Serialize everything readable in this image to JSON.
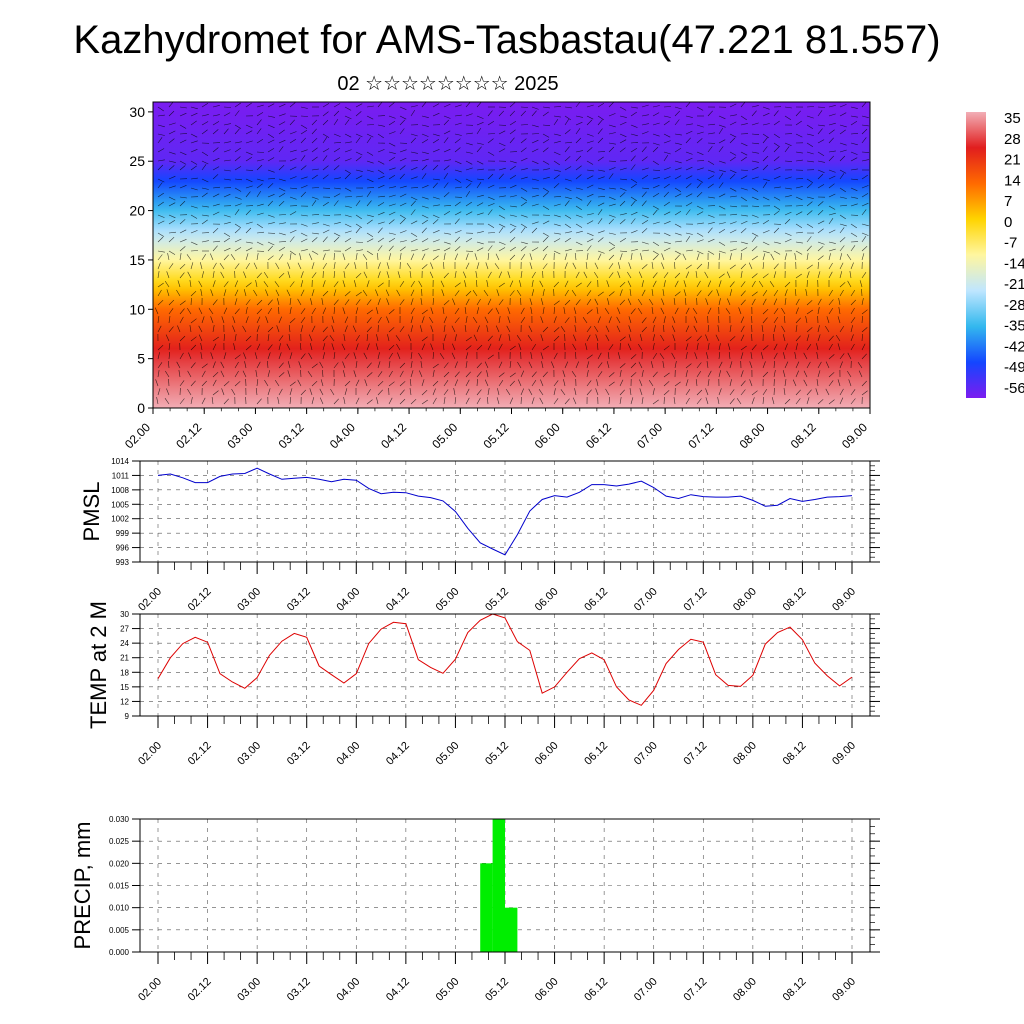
{
  "page": {
    "title": "Kazhydromet for AMS-Tasbastau(47.221 81.557)",
    "subtitle": "02 ☆☆☆☆☆☆☆☆ 2025"
  },
  "time_ticks": [
    "02.00",
    "02.12",
    "03.00",
    "03.12",
    "04.00",
    "04.12",
    "05.00",
    "05.12",
    "06.00",
    "06.12",
    "07.00",
    "07.12",
    "08.00",
    "08.12",
    "09.00"
  ],
  "chart_data": [
    {
      "type": "heatmap",
      "title": "",
      "xlabel": "",
      "ylabel": "",
      "xlim": [
        0,
        7
      ],
      "ylim": [
        0,
        31
      ],
      "y_tick_labels": [
        "0",
        "5",
        "10",
        "15",
        "20",
        "25",
        "30"
      ],
      "colorbar": {
        "labels": [
          "35",
          "28",
          "21",
          "14",
          "7",
          "0",
          "-7",
          "-14",
          "-21",
          "-28",
          "-35",
          "-42",
          "-49",
          "-56"
        ],
        "colors": [
          "#f2aeb6",
          "#e11e1e",
          "#ff6a00",
          "#ffd400",
          "#fff6a0",
          "#bfe6ff",
          "#33b8ee",
          "#1446ff",
          "#7b1cf0"
        ]
      },
      "height_profile": [
        {
          "height": 0,
          "value": 30
        },
        {
          "height": 5,
          "value": 21
        },
        {
          "height": 10,
          "value": 8
        },
        {
          "height": 15,
          "value": -14
        },
        {
          "height": 20,
          "value": -35
        },
        {
          "height": 25,
          "value": -55
        },
        {
          "height": 31,
          "value": -58
        }
      ],
      "overlay": "wind vectors"
    },
    {
      "type": "line",
      "ylabel": "PMSL",
      "ylim": [
        993,
        1014
      ],
      "y_tick_labels": [
        "1014",
        "1011",
        "1008",
        "1005",
        "1002",
        "999",
        "996",
        "993"
      ],
      "series": [
        {
          "color": "#0000cc",
          "x": [
            0,
            0.125,
            0.25,
            0.375,
            0.5,
            0.625,
            0.75,
            0.875,
            1.0,
            1.125,
            1.25,
            1.375,
            1.5,
            1.625,
            1.75,
            1.875,
            2.0,
            2.125,
            2.25,
            2.375,
            2.5,
            2.625,
            2.75,
            2.875,
            3.0,
            3.125,
            3.25,
            3.375,
            3.5,
            3.625,
            3.75,
            3.875,
            4.0,
            4.125,
            4.25,
            4.375,
            4.5,
            4.625,
            4.75,
            4.875,
            5.0,
            5.125,
            5.25,
            5.375,
            5.5,
            5.625,
            5.75,
            5.875,
            6.0,
            6.125,
            6.25,
            6.375,
            6.5,
            6.625,
            6.75,
            6.875,
            7.0
          ],
          "values": [
            1011,
            1011.3,
            1010.5,
            1009.5,
            1009.5,
            1010.8,
            1011.3,
            1011.4,
            1012.5,
            1011.3,
            1010.2,
            1010.4,
            1010.6,
            1010.2,
            1009.7,
            1010.2,
            1010,
            1008.3,
            1007.2,
            1007.5,
            1007.4,
            1006.7,
            1006.4,
            1005.7,
            1003.5,
            1000,
            997,
            995.7,
            994.5,
            998.7,
            1003.6,
            1006,
            1006.8,
            1006.5,
            1007.5,
            1009.1,
            1009.1,
            1008.8,
            1009.2,
            1009.8,
            1008.5,
            1006.7,
            1006.2,
            1007,
            1006.6,
            1006.5,
            1006.5,
            1006.7,
            1005.8,
            1004.6,
            1004.8,
            1006.2,
            1005.6,
            1006,
            1006.5,
            1006.6,
            1006.8
          ]
        }
      ]
    },
    {
      "type": "line",
      "ylabel": "TEMP at 2 M",
      "ylim": [
        9,
        30
      ],
      "y_tick_labels": [
        "30",
        "27",
        "24",
        "21",
        "18",
        "15",
        "12",
        "9"
      ],
      "series": [
        {
          "color": "#dd0000",
          "x": [
            0,
            0.125,
            0.25,
            0.375,
            0.5,
            0.625,
            0.75,
            0.875,
            1.0,
            1.125,
            1.25,
            1.375,
            1.5,
            1.625,
            1.75,
            1.875,
            2.0,
            2.125,
            2.25,
            2.375,
            2.5,
            2.625,
            2.75,
            2.875,
            3.0,
            3.125,
            3.25,
            3.375,
            3.5,
            3.625,
            3.75,
            3.875,
            4.0,
            4.125,
            4.25,
            4.375,
            4.5,
            4.625,
            4.75,
            4.875,
            5.0,
            5.125,
            5.25,
            5.375,
            5.5,
            5.625,
            5.75,
            5.875,
            6.0,
            6.125,
            6.25,
            6.375,
            6.5,
            6.625,
            6.75,
            6.875,
            7.0
          ],
          "values": [
            16.7,
            21,
            23.9,
            25.2,
            24.2,
            17.7,
            16,
            14.7,
            16.9,
            21.5,
            24.4,
            26,
            25.2,
            19.3,
            17.5,
            15.8,
            17.7,
            23.9,
            26.9,
            28.3,
            28,
            20.6,
            19,
            17.8,
            20.7,
            26.2,
            28.7,
            30,
            29.2,
            24.3,
            22.5,
            13.7,
            15,
            18,
            20.8,
            22,
            20.6,
            15,
            12.3,
            11.2,
            14.3,
            19.8,
            22.7,
            24.8,
            24.2,
            17.5,
            15.3,
            15.1,
            17.4,
            23.8,
            26.2,
            27.3,
            24.7,
            19.9,
            17.3,
            15.2,
            17
          ]
        }
      ]
    },
    {
      "type": "bar",
      "ylabel": "PRECIP, mm",
      "ylim": [
        0,
        0.03
      ],
      "y_tick_labels": [
        "0.030",
        "0.025",
        "0.020",
        "0.015",
        "0.010",
        "0.005",
        "0.000"
      ],
      "color": "#00ee00",
      "bars": [
        {
          "x_start": 3.25,
          "x_end": 3.375,
          "value": 0.02
        },
        {
          "x_start": 3.375,
          "x_end": 3.5,
          "value": 0.03
        },
        {
          "x_start": 3.5,
          "x_end": 3.625,
          "value": 0.01
        }
      ]
    }
  ]
}
